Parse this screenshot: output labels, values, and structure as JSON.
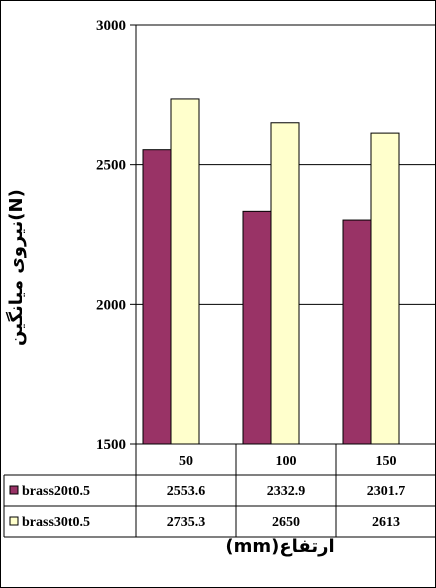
{
  "chart_data": {
    "type": "bar",
    "categories": [
      "50",
      "100",
      "150"
    ],
    "series": [
      {
        "name": "brass20t0.5",
        "values": [
          2553.6,
          2332.9,
          2301.7
        ],
        "color": "#993366"
      },
      {
        "name": "brass30t0.5",
        "values": [
          2735.3,
          2650,
          2613
        ],
        "color": "#ffffcc"
      }
    ],
    "y_ticks": [
      "3000",
      "2500",
      "2000",
      "1500"
    ],
    "ylim": [
      1500,
      3000
    ],
    "ylabel": "نیروی میانگین(N)",
    "xlabel": "ارتفاع(mm)",
    "grid": true,
    "legend": "data-table-left"
  }
}
